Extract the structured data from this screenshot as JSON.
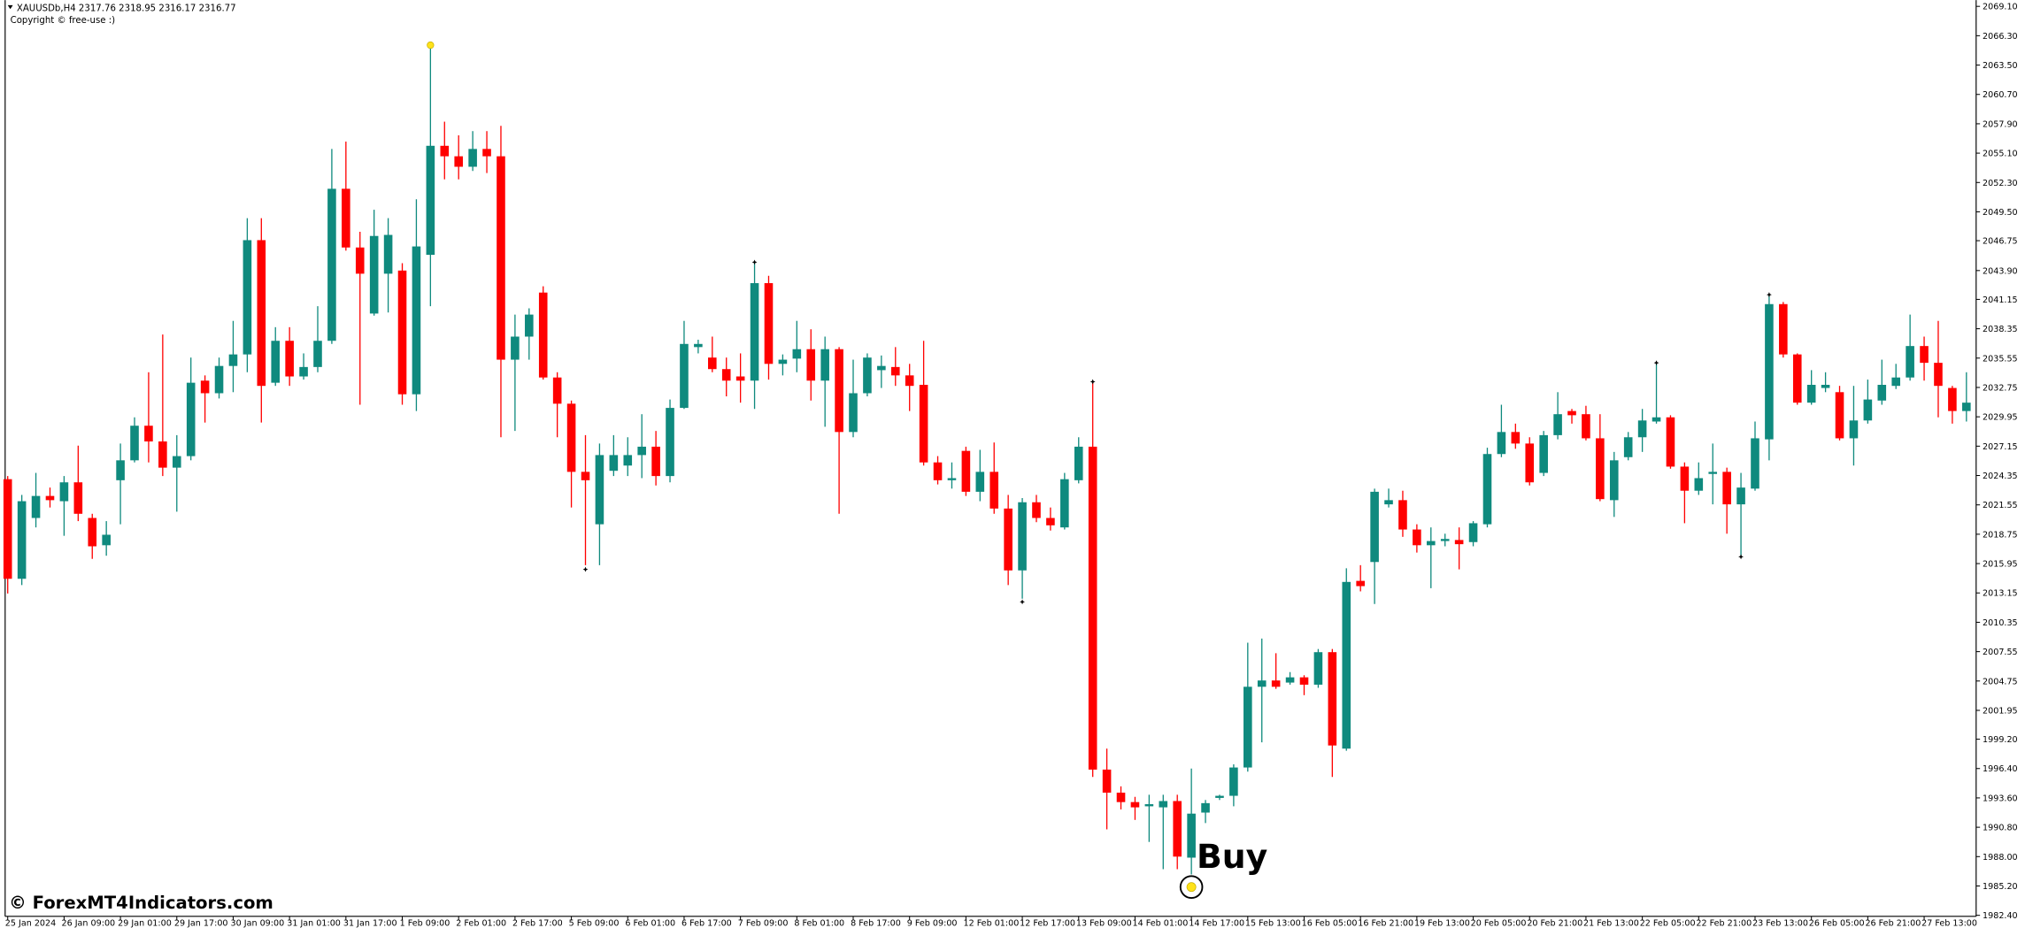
{
  "chart_data": {
    "type": "candlestick",
    "title": "XAUUSDb,H4  2317.76 2318.95 2316.17 2316.77",
    "subtitle": "Copyright © free-use :)",
    "watermark": "© ForexMT4Indicators.com",
    "categories": [
      "25 Jan 2024",
      null,
      null,
      null,
      "26 Jan 09:00",
      null,
      null,
      null,
      "29 Jan 01:00",
      null,
      null,
      null,
      "29 Jan 17:00",
      null,
      null,
      null,
      "30 Jan 09:00",
      null,
      null,
      null,
      "31 Jan 01:00",
      null,
      null,
      null,
      "31 Jan 17:00",
      null,
      null,
      null,
      "1 Feb 09:00",
      null,
      null,
      null,
      "2 Feb 01:00",
      null,
      null,
      null,
      "2 Feb 17:00",
      null,
      null,
      null,
      "5 Feb 09:00",
      null,
      null,
      null,
      "6 Feb 01:00",
      null,
      null,
      null,
      "6 Feb 17:00",
      null,
      null,
      null,
      "7 Feb 09:00",
      null,
      null,
      null,
      "8 Feb 01:00",
      null,
      null,
      null,
      "8 Feb 17:00",
      null,
      null,
      null,
      "9 Feb 09:00",
      null,
      null,
      null,
      "12 Feb 01:00",
      null,
      null,
      null,
      "12 Feb 17:00",
      null,
      null,
      null,
      "13 Feb 09:00",
      null,
      null,
      null,
      "14 Feb 01:00",
      null,
      null,
      null,
      "14 Feb 17:00",
      null,
      null,
      null,
      "15 Feb 13:00",
      null,
      null,
      null,
      "16 Feb 05:00",
      null,
      null,
      null,
      "16 Feb 21:00",
      null,
      null,
      null,
      "19 Feb 13:00",
      null,
      null,
      null,
      "20 Feb 05:00",
      null,
      null,
      null,
      "20 Feb 21:00",
      null,
      null,
      null,
      "21 Feb 13:00",
      null,
      null,
      null,
      "22 Feb 05:00",
      null,
      null,
      null,
      "22 Feb 21:00",
      null,
      null,
      null,
      "23 Feb 13:00",
      null,
      null,
      null,
      "26 Feb 05:00",
      null,
      null,
      null,
      "26 Feb 21:00",
      null,
      null,
      null,
      "27 Feb 13:00",
      null,
      null,
      null
    ],
    "open": [
      2024.0,
      2014.5,
      2020.3,
      2022.4,
      2021.9,
      2023.7,
      2020.3,
      2017.7,
      2023.9,
      2025.8,
      2029.1,
      2027.6,
      2025.1,
      2026.2,
      2033.4,
      2032.2,
      2034.8,
      2035.9,
      2046.8,
      2033.2,
      2037.2,
      2033.8,
      2034.7,
      2037.2,
      2051.7,
      2046.1,
      2039.8,
      2043.6,
      2043.9,
      2032.1,
      2045.4,
      2055.8,
      2054.8,
      2053.8,
      2055.5,
      2054.8,
      2035.4,
      2037.6,
      2041.8,
      2033.7,
      2031.2,
      2024.7,
      2019.7,
      2024.8,
      2025.3,
      2026.3,
      2027.1,
      2024.3,
      2030.8,
      2036.6,
      2035.6,
      2034.5,
      2033.8,
      2033.4,
      2042.7,
      2035.0,
      2035.5,
      2036.4,
      2033.4,
      2036.4,
      2028.5,
      2032.2,
      2034.4,
      2034.7,
      2033.9,
      2033.0,
      2025.6,
      2023.9,
      2026.7,
      2022.8,
      2024.7,
      2021.2,
      2015.3,
      2021.8,
      2020.3,
      2019.4,
      2023.9,
      2027.1,
      1996.3,
      1994.1,
      1993.2,
      1992.8,
      1992.7,
      1993.3,
      1987.9,
      1992.2,
      1993.6,
      1993.8,
      1996.5,
      2004.2,
      2004.8,
      2004.6,
      2005.1,
      2004.4,
      2007.5,
      1998.3,
      2014.3,
      2016.1,
      2021.6,
      2022.0,
      2019.2,
      2017.7,
      2018.1,
      2018.2,
      2018.0,
      2019.7,
      2026.4,
      2028.5,
      2027.4,
      2024.6,
      2028.2,
      2030.5,
      2030.2,
      2027.9,
      2022.0,
      2026.1,
      2028.0,
      2029.5,
      2029.9,
      2025.2,
      2022.9,
      2024.5,
      2024.7,
      2021.6,
      2023.1,
      2027.8,
      2040.7,
      2035.9,
      2031.3,
      2032.7,
      2032.3,
      2027.9,
      2029.6,
      2031.5,
      2032.9,
      2033.7,
      2036.7,
      2035.1,
      2032.7,
      2030.5
    ],
    "high": [
      2024.3,
      2022.5,
      2024.6,
      2023.2,
      2024.3,
      2027.2,
      2020.7,
      2020.0,
      2027.4,
      2029.9,
      2034.2,
      2037.8,
      2028.2,
      2035.6,
      2033.9,
      2035.6,
      2039.1,
      2048.9,
      2048.9,
      2038.5,
      2038.5,
      2036.0,
      2040.5,
      2055.5,
      2056.2,
      2047.6,
      2049.7,
      2048.9,
      2044.6,
      2050.7,
      2065.4,
      2058.1,
      2056.8,
      2057.2,
      2057.2,
      2057.7,
      2039.7,
      2040.3,
      2042.4,
      2034.2,
      2031.5,
      2028.2,
      2027.4,
      2028.2,
      2028.0,
      2030.2,
      2028.6,
      2031.6,
      2039.1,
      2037.3,
      2037.6,
      2035.6,
      2036.0,
      2044.7,
      2043.4,
      2035.9,
      2039.1,
      2038.3,
      2037.6,
      2036.6,
      2035.4,
      2036.0,
      2035.8,
      2036.6,
      2035.0,
      2037.2,
      2026.2,
      2025.6,
      2027.1,
      2026.8,
      2027.5,
      2022.5,
      2022.2,
      2022.5,
      2021.3,
      2024.6,
      2028.0,
      2033.3,
      1998.3,
      1994.7,
      1993.7,
      1993.9,
      1993.9,
      1993.9,
      1996.4,
      1993.4,
      1993.9,
      1996.8,
      2008.4,
      2008.8,
      2007.4,
      2005.6,
      2005.3,
      2007.8,
      2007.8,
      2015.5,
      2015.8,
      2023.1,
      2023.1,
      2022.9,
      2019.7,
      2019.4,
      2018.8,
      2019.4,
      2020.0,
      2027.0,
      2031.1,
      2029.3,
      2028.0,
      2028.6,
      2032.3,
      2030.7,
      2031.0,
      2030.2,
      2026.6,
      2028.5,
      2030.7,
      2035.1,
      2030.1,
      2025.6,
      2025.6,
      2027.4,
      2025.1,
      2024.6,
      2029.5,
      2041.5,
      2040.9,
      2036.0,
      2034.4,
      2034.2,
      2032.9,
      2032.9,
      2033.5,
      2035.4,
      2035.0,
      2039.7,
      2037.6,
      2039.1,
      2032.9,
      2034.2
    ],
    "low": [
      2013.1,
      2013.9,
      2019.4,
      2021.3,
      2018.6,
      2020.0,
      2016.4,
      2016.7,
      2019.7,
      2025.6,
      2025.6,
      2024.3,
      2020.9,
      2025.8,
      2029.4,
      2031.7,
      2032.3,
      2034.2,
      2029.4,
      2032.9,
      2032.9,
      2033.5,
      2034.2,
      2036.9,
      2045.8,
      2031.1,
      2039.6,
      2039.9,
      2031.1,
      2030.5,
      2040.5,
      2052.6,
      2052.6,
      2053.4,
      2053.2,
      2028.0,
      2028.6,
      2035.4,
      2033.5,
      2028.0,
      2021.3,
      2015.8,
      2015.8,
      2024.3,
      2024.3,
      2024.1,
      2023.4,
      2023.7,
      2030.7,
      2036.0,
      2034.2,
      2031.9,
      2031.3,
      2030.7,
      2033.5,
      2033.9,
      2034.2,
      2031.5,
      2029.0,
      2020.7,
      2028.0,
      2031.9,
      2032.7,
      2032.9,
      2030.5,
      2025.3,
      2023.5,
      2023.1,
      2022.4,
      2021.9,
      2020.7,
      2013.9,
      2012.6,
      2019.9,
      2019.1,
      2019.2,
      2023.6,
      1995.6,
      1990.6,
      1992.5,
      1991.5,
      1989.4,
      1986.8,
      1986.8,
      1986.3,
      1991.2,
      1993.4,
      1992.8,
      1996.1,
      1998.9,
      2004.0,
      2004.4,
      2003.4,
      2004.1,
      1995.6,
      1998.1,
      2013.3,
      2012.1,
      2021.3,
      2018.5,
      2017.0,
      2013.6,
      2017.6,
      2015.4,
      2017.6,
      2019.4,
      2026.1,
      2026.9,
      2023.4,
      2024.3,
      2027.8,
      2029.3,
      2027.7,
      2021.9,
      2020.4,
      2025.8,
      2026.6,
      2029.3,
      2025.0,
      2019.8,
      2022.5,
      2021.6,
      2018.8,
      2016.7,
      2022.9,
      2025.8,
      2035.6,
      2031.1,
      2031.1,
      2032.3,
      2027.7,
      2025.3,
      2029.3,
      2031.1,
      2032.6,
      2033.4,
      2033.4,
      2029.9,
      2029.3,
      2029.5
    ],
    "close": [
      2014.5,
      2021.9,
      2022.4,
      2022.0,
      2023.7,
      2020.7,
      2017.6,
      2018.7,
      2025.8,
      2029.1,
      2027.6,
      2025.1,
      2026.2,
      2033.2,
      2032.2,
      2034.8,
      2035.9,
      2046.8,
      2032.9,
      2037.2,
      2033.8,
      2034.7,
      2037.2,
      2051.7,
      2046.1,
      2043.6,
      2047.2,
      2047.3,
      2032.1,
      2046.2,
      2055.8,
      2054.8,
      2053.8,
      2055.5,
      2054.8,
      2035.4,
      2037.6,
      2039.7,
      2033.7,
      2031.2,
      2024.7,
      2023.9,
      2026.3,
      2026.3,
      2026.3,
      2027.1,
      2024.3,
      2030.8,
      2036.9,
      2036.9,
      2034.5,
      2033.4,
      2033.4,
      2042.7,
      2035.0,
      2035.4,
      2036.4,
      2033.4,
      2036.4,
      2028.5,
      2032.2,
      2035.6,
      2034.8,
      2033.9,
      2032.9,
      2025.6,
      2023.9,
      2024.1,
      2022.8,
      2024.7,
      2021.2,
      2015.3,
      2021.8,
      2020.3,
      2019.6,
      2024.0,
      2027.1,
      1996.3,
      1994.1,
      1993.2,
      1992.7,
      1993.0,
      1993.3,
      1988.0,
      1992.1,
      1993.1,
      1993.8,
      1996.5,
      2004.2,
      2004.8,
      2004.2,
      2005.1,
      2004.4,
      2007.5,
      1998.6,
      2014.2,
      2013.8,
      2022.8,
      2022.0,
      2019.2,
      2017.7,
      2018.1,
      2018.3,
      2017.8,
      2019.8,
      2026.4,
      2028.5,
      2027.4,
      2023.7,
      2028.2,
      2030.2,
      2030.1,
      2027.9,
      2022.1,
      2025.8,
      2028.0,
      2029.6,
      2029.9,
      2025.2,
      2022.9,
      2024.1,
      2024.7,
      2021.6,
      2023.2,
      2027.9,
      2040.7,
      2035.9,
      2031.3,
      2033.0,
      2033.0,
      2027.9,
      2029.6,
      2031.6,
      2033.0,
      2033.7,
      2036.7,
      2035.1,
      2032.9,
      2030.5,
      2031.3
    ],
    "up_color": "#0f8a7e",
    "down_color": "#ff0000",
    "ylim": [
      1982.3,
      2069.7
    ],
    "yticks": [
      {
        "value": 1982.4,
        "label": "1982.40"
      },
      {
        "value": 1985.2,
        "label": "1985.20"
      },
      {
        "value": 1988.0,
        "label": "1988.00"
      },
      {
        "value": 1990.8,
        "label": "1990.80"
      },
      {
        "value": 1993.6,
        "label": "1993.60"
      },
      {
        "value": 1996.4,
        "label": "1996.40"
      },
      {
        "value": 1999.2,
        "label": "1999.20"
      },
      {
        "value": 2001.95,
        "label": "2001.95"
      },
      {
        "value": 2004.75,
        "label": "2004.75"
      },
      {
        "value": 2007.55,
        "label": "2007.55"
      },
      {
        "value": 2010.35,
        "label": "2010.35"
      },
      {
        "value": 2013.15,
        "label": "2013.15"
      },
      {
        "value": 2015.95,
        "label": "2015.95"
      },
      {
        "value": 2018.75,
        "label": "2018.75"
      },
      {
        "value": 2021.55,
        "label": "2021.55"
      },
      {
        "value": 2024.35,
        "label": "2024.35"
      },
      {
        "value": 2027.15,
        "label": "2027.15"
      },
      {
        "value": 2029.95,
        "label": "2029.95"
      },
      {
        "value": 2032.75,
        "label": "2032.75"
      },
      {
        "value": 2035.55,
        "label": "2035.55"
      },
      {
        "value": 2038.35,
        "label": "2038.35"
      },
      {
        "value": 2041.15,
        "label": "2041.15"
      },
      {
        "value": 2043.9,
        "label": "2043.90"
      },
      {
        "value": 2046.75,
        "label": "2046.75"
      },
      {
        "value": 2049.5,
        "label": "2049.50"
      },
      {
        "value": 2052.3,
        "label": "2052.30"
      },
      {
        "value": 2055.1,
        "label": "2055.10"
      },
      {
        "value": 2057.9,
        "label": "2057.90"
      },
      {
        "value": 2060.7,
        "label": "2060.70"
      },
      {
        "value": 2063.5,
        "label": "2063.50"
      },
      {
        "value": 2066.3,
        "label": "2066.30"
      },
      {
        "value": 2069.1,
        "label": "2069.10"
      }
    ],
    "markers": [
      {
        "index": 41,
        "value": 2015.4
      },
      {
        "index": 53,
        "value": 2044.7
      },
      {
        "index": 72,
        "value": 2012.3
      },
      {
        "index": 77,
        "value": 2033.3
      },
      {
        "index": 117,
        "value": 2035.1
      },
      {
        "index": 123,
        "value": 2016.6
      },
      {
        "index": 125,
        "value": 2041.6
      }
    ],
    "marker_color": "#000000",
    "signals": [
      {
        "index": 30,
        "value": 2065.4
      },
      {
        "index": 84,
        "value": 1985.1,
        "label": "Buy"
      }
    ],
    "signal_color": "#ffe21a"
  }
}
